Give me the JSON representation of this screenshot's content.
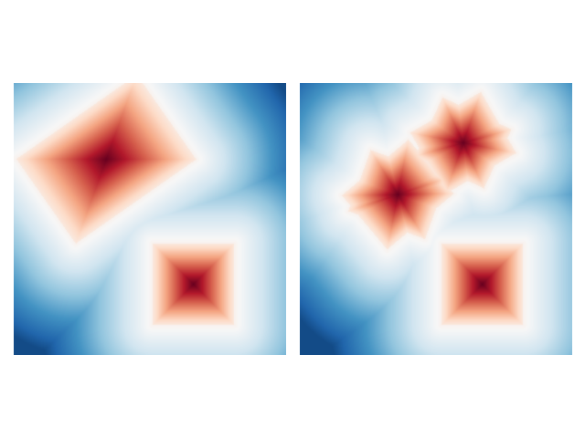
{
  "chart_data": [
    {
      "type": "heatmap",
      "colormap": "RdBu_r",
      "colors": {
        "low": "#053061",
        "mid": "#f7f7f7",
        "high": "#67001f"
      },
      "axes_visible": false,
      "grid": false,
      "title": "",
      "xlabel": "",
      "ylabel": "",
      "xlim": [
        0,
        1
      ],
      "ylim": [
        0,
        1
      ],
      "value_range": [
        0,
        1
      ],
      "shapes": [
        {
          "kind": "rotated-rectangle",
          "center": [
            0.34,
            0.72
          ],
          "half_width": 0.27,
          "half_height": 0.19,
          "rotation_deg": 35,
          "value_at_center": 1.0
        },
        {
          "kind": "square",
          "center": [
            0.66,
            0.26
          ],
          "half_width": 0.15,
          "half_height": 0.15,
          "rotation_deg": 0,
          "value_at_center": 1.0
        }
      ]
    },
    {
      "type": "heatmap",
      "colormap": "RdBu_r",
      "colors": {
        "low": "#053061",
        "mid": "#f7f7f7",
        "high": "#67001f"
      },
      "axes_visible": false,
      "grid": false,
      "title": "",
      "xlabel": "",
      "ylabel": "",
      "xlim": [
        0,
        1
      ],
      "ylim": [
        0,
        1
      ],
      "value_range": [
        0,
        1
      ],
      "shapes": [
        {
          "kind": "rotated-rectangle",
          "center": [
            0.36,
            0.59
          ],
          "half_width": 0.16,
          "half_height": 0.13,
          "rotation_deg": 40,
          "value_at_center": 1.0
        },
        {
          "kind": "rotated-rectangle",
          "center": [
            0.36,
            0.59
          ],
          "half_width": 0.15,
          "half_height": 0.12,
          "rotation_deg": -20,
          "value_at_center": 1.0
        },
        {
          "kind": "rotated-rectangle",
          "center": [
            0.6,
            0.78
          ],
          "half_width": 0.15,
          "half_height": 0.13,
          "rotation_deg": 30,
          "value_at_center": 1.0
        },
        {
          "kind": "rotated-rectangle",
          "center": [
            0.6,
            0.78
          ],
          "half_width": 0.14,
          "half_height": 0.12,
          "rotation_deg": -25,
          "value_at_center": 1.0
        },
        {
          "kind": "square",
          "center": [
            0.67,
            0.26
          ],
          "half_width": 0.15,
          "half_height": 0.15,
          "rotation_deg": 0,
          "value_at_center": 1.0
        }
      ]
    }
  ]
}
